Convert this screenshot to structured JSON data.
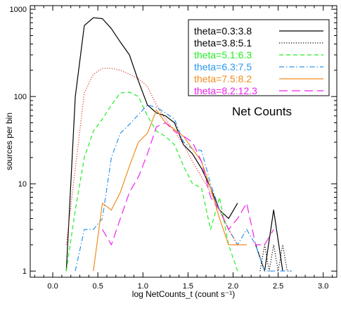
{
  "chart_data": {
    "type": "line",
    "annotation": "Net Counts",
    "xlabel": "log NetCounts_t  (count s⁻¹)",
    "ylabel": "sources per bin",
    "x_log": false,
    "y_log": true,
    "xlim": [
      -0.25,
      3.15
    ],
    "ylim": [
      0.85,
      1100
    ],
    "x_ticks": [
      {
        "value": 0.0,
        "label": "0.0"
      },
      {
        "value": 0.5,
        "label": "0.5"
      },
      {
        "value": 1.0,
        "label": "1.0"
      },
      {
        "value": 1.5,
        "label": "1.5"
      },
      {
        "value": 2.0,
        "label": "2.0"
      },
      {
        "value": 2.5,
        "label": "2.5"
      },
      {
        "value": 3.0,
        "label": "3.0"
      }
    ],
    "y_ticks": [
      {
        "value": 1,
        "label": "1"
      },
      {
        "value": 10,
        "label": "10"
      },
      {
        "value": 100,
        "label": "100"
      },
      {
        "value": 1000,
        "label": "1000"
      }
    ],
    "legend_position": "top-right",
    "series": [
      {
        "name": "theta=0.3:3.8",
        "color": "#000000",
        "dash": "solid",
        "x": [
          0.15,
          0.25,
          0.35,
          0.45,
          0.55,
          0.65,
          0.75,
          0.85,
          0.95,
          1.05,
          1.15,
          1.25,
          1.35,
          1.45,
          1.55,
          1.65,
          1.75,
          1.85,
          1.95,
          2.05,
          2.15,
          2.25,
          2.35,
          2.45,
          2.55
        ],
        "y": [
          1,
          100,
          650,
          800,
          780,
          600,
          420,
          300,
          150,
          80,
          65,
          60,
          50,
          28,
          22,
          15,
          9,
          5,
          4,
          6,
          null,
          2,
          1,
          5,
          1
        ]
      },
      {
        "name": "theta=3.8:5.1",
        "color": "#000000",
        "dash": "dotted",
        "x": [
          2.3,
          2.35,
          2.4,
          2.45,
          2.5,
          2.55,
          2.6,
          2.65
        ],
        "y": [
          1,
          2,
          1,
          2,
          1,
          2,
          1,
          1
        ]
      },
      {
        "name": "theta=5.1:6.3",
        "color": "#22ee22",
        "dash": "dashed",
        "x": [
          0.15,
          0.25,
          0.35,
          0.45,
          0.55,
          0.65,
          0.75,
          0.85,
          0.95,
          1.05,
          1.15,
          1.25,
          1.35,
          1.45,
          1.55,
          1.65,
          1.75,
          1.85,
          1.95,
          2.05
        ],
        "y": [
          1,
          5,
          20,
          40,
          55,
          80,
          110,
          112,
          100,
          60,
          40,
          35,
          28,
          16,
          10,
          9,
          3,
          7,
          2,
          1
        ]
      },
      {
        "name": "theta=6.3:7.5",
        "color": "#2a95ee",
        "dash": "dashdot",
        "x": [
          0.25,
          0.35,
          0.45,
          0.55,
          0.65,
          0.75,
          0.85,
          0.95,
          1.05,
          1.15,
          1.25,
          1.35,
          1.45,
          1.55,
          1.65,
          1.75,
          1.85,
          1.95,
          2.05,
          2.15,
          2.25,
          2.35,
          2.45,
          2.55,
          2.65
        ],
        "y": [
          1,
          3,
          3,
          4,
          20,
          38,
          48,
          62,
          80,
          75,
          65,
          55,
          30,
          25,
          24,
          10,
          5,
          3,
          2,
          3,
          2,
          1,
          1,
          1,
          1
        ]
      },
      {
        "name": "theta=7.5:8.2",
        "color": "#f08c1e",
        "dash": "solid",
        "x": [
          0.45,
          0.55,
          0.65,
          0.75,
          0.85,
          0.95,
          1.05,
          1.15,
          1.25,
          1.35,
          1.45,
          1.55,
          1.65,
          1.75,
          1.85,
          1.95,
          2.05,
          2.15
        ],
        "y": [
          1,
          6,
          5,
          8,
          16,
          30,
          38,
          70,
          50,
          42,
          35,
          25,
          18,
          9,
          4,
          2,
          2,
          2
        ]
      },
      {
        "name": "theta=8.2:12.3",
        "color": "#ee22ee",
        "dash": "longdash",
        "x": [
          0.55,
          0.65,
          0.75,
          0.85,
          0.95,
          1.05,
          1.15,
          1.25,
          1.35,
          1.45,
          1.55,
          1.65,
          1.75,
          1.85,
          1.95,
          2.05,
          2.15,
          2.25,
          2.35,
          2.45
        ],
        "y": [
          3,
          2,
          4,
          8,
          12,
          22,
          45,
          50,
          40,
          35,
          30,
          18,
          7,
          5,
          3,
          4,
          6,
          2,
          2,
          3
        ]
      },
      {
        "name": "",
        "color": "#dd3322",
        "dash": "dotted",
        "x": [
          0.15,
          0.25,
          0.35,
          0.45,
          0.55,
          0.65,
          0.75,
          0.85,
          0.95,
          1.05,
          1.15,
          1.25,
          1.35,
          1.45,
          1.55,
          1.65,
          1.75,
          1.85,
          1.95,
          2.05
        ],
        "y": [
          2,
          15,
          110,
          180,
          210,
          210,
          200,
          180,
          160,
          130,
          80,
          55,
          40,
          28,
          18,
          12,
          8,
          5,
          3,
          2
        ]
      }
    ]
  }
}
